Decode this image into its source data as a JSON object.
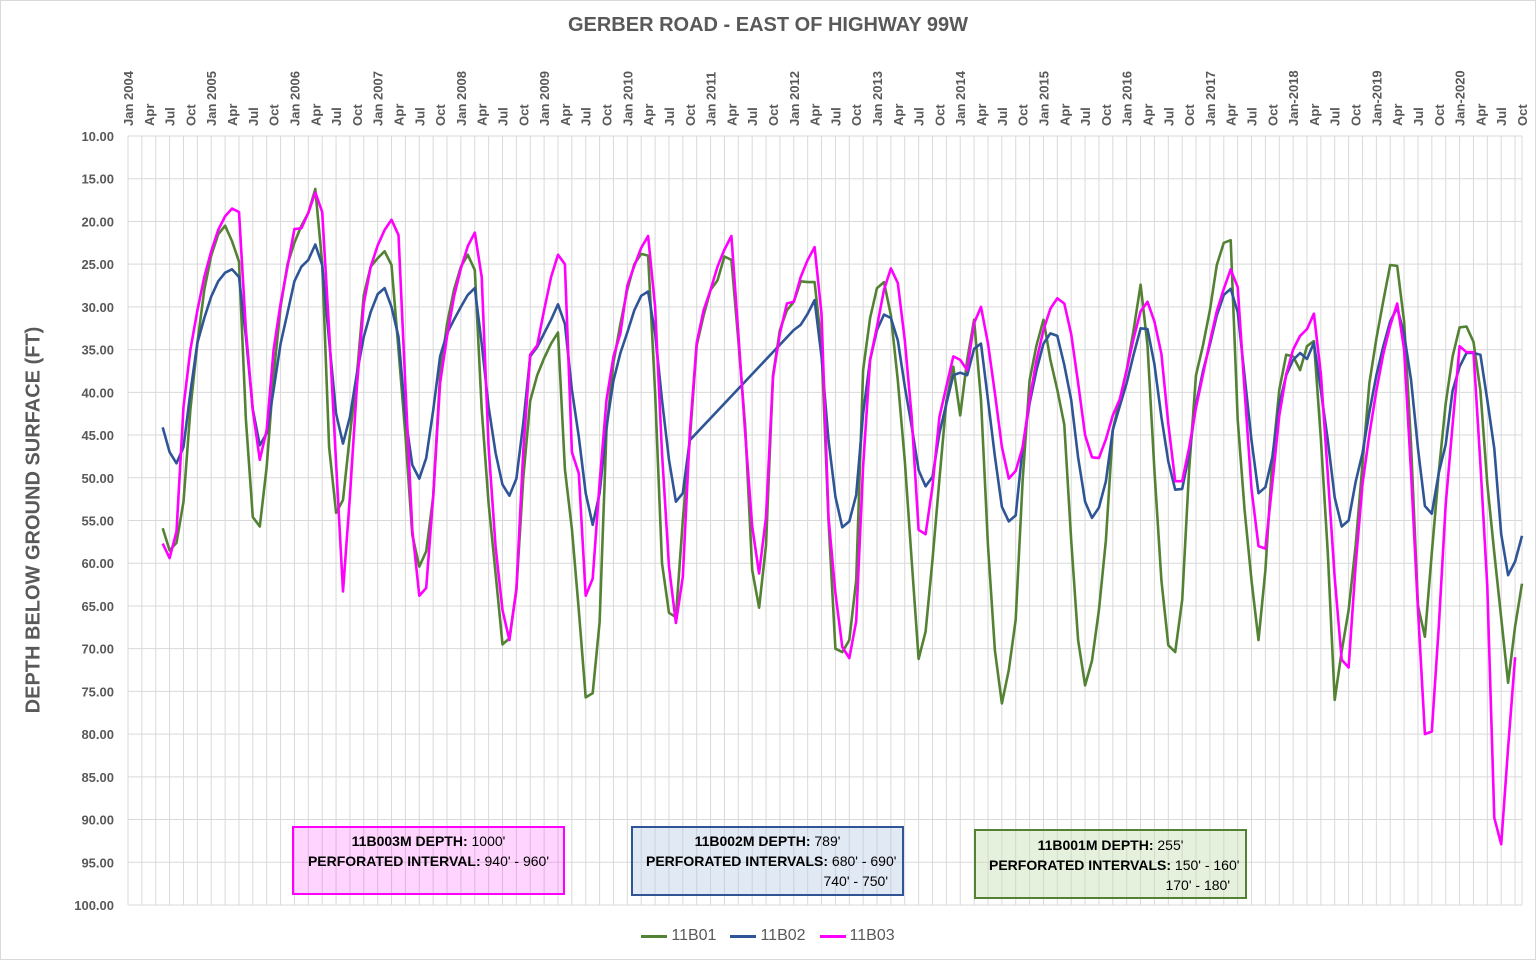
{
  "chart_data": {
    "type": "line",
    "title": "GERBER ROAD - EAST OF HIGHWAY 99W",
    "ylabel": "DEPTH BELOW GROUND SURFACE (FT)",
    "xlabel": "",
    "y_inverted": true,
    "ylim": [
      10,
      100
    ],
    "y_ticks": [
      "10.00",
      "15.00",
      "20.00",
      "25.00",
      "30.00",
      "35.00",
      "40.00",
      "45.00",
      "50.00",
      "55.00",
      "60.00",
      "65.00",
      "70.00",
      "75.00",
      "80.00",
      "85.00",
      "90.00",
      "95.00",
      "100.00"
    ],
    "xlim": [
      "2004-01",
      "2020-10"
    ],
    "x_position": "top",
    "x_ticks": [
      "Jan 2004",
      "Apr",
      "Jul",
      "Oct",
      "Jan 2005",
      "Apr",
      "Jul",
      "Oct",
      "Jan 2006",
      "Apr",
      "Jul",
      "Oct",
      "Jan 2007",
      "Apr",
      "Jul",
      "Oct",
      "Jan 2008",
      "Apr",
      "Jul",
      "Oct",
      "Jan 2009",
      "Apr",
      "Jul",
      "Oct",
      "Jan 2010",
      "Apr",
      "Jul",
      "Oct",
      "Jan 2011",
      "Apr",
      "Jul",
      "Oct",
      "Jan 2012",
      "Apr",
      "Jul",
      "Oct",
      "Jan 2013",
      "Apr",
      "Jul",
      "Oct",
      "Jan 2014",
      "Apr",
      "Jul",
      "Oct",
      "Jan 2015",
      "Apr",
      "Jul",
      "Oct",
      "Jan 2016",
      "Apr",
      "Jul",
      "Oct",
      "Jan 2017",
      "Apr",
      "Jul",
      "Oct",
      "Jan-2018",
      "Apr",
      "Jul",
      "Oct",
      "Jan-2019",
      "Apr",
      "Jul",
      "Oct",
      "Jan-2020",
      "Apr",
      "Jul",
      "Oct"
    ],
    "grid": true,
    "legend_position": "bottom",
    "series": [
      {
        "name": "11B01",
        "color": "#548235",
        "start": "2004-06",
        "values": [
          55.9,
          58.5,
          57.6,
          52.8,
          42,
          34.2,
          28,
          24,
          21.5,
          20.5,
          22.3,
          24.7,
          43.2,
          54.6,
          55.7,
          48.7,
          38,
          30,
          25,
          22.5,
          20.5,
          19,
          16.2,
          24.9,
          46.4,
          54.1,
          52.6,
          45,
          38,
          28.6,
          25.3,
          24.3,
          23.5,
          25.1,
          35,
          45,
          56.7,
          60.4,
          58.6,
          52.2,
          38,
          32,
          28,
          25.3,
          23.9,
          25.7,
          42,
          53,
          61.2,
          69.5,
          68.8,
          63.1,
          50,
          41,
          38,
          36,
          34.3,
          33,
          49,
          56,
          65.5,
          75.7,
          75.2,
          66.9,
          44.4,
          36.5,
          32,
          28,
          25,
          23.8,
          24,
          40,
          60,
          65.8,
          66.3,
          55,
          45.6,
          34.5,
          31,
          28,
          26.9,
          24.1,
          24.5,
          33.9,
          44,
          60.8,
          65.2,
          57.9,
          38,
          32.7,
          30.4,
          29.4,
          27,
          27.1,
          27.1,
          34.5,
          55,
          70,
          70.4,
          69,
          62,
          37.4,
          31.3,
          27.8,
          27.1,
          31,
          38.6,
          48,
          59.7,
          71.2,
          68,
          59.6,
          50.2,
          41,
          37,
          42.7,
          36.2,
          31.5,
          40.9,
          58,
          70.2,
          76.4,
          72.5,
          66.6,
          50.2,
          38.6,
          34.5,
          31.5,
          36.2,
          39.7,
          43.8,
          57.3,
          69,
          74.3,
          71.4,
          65.5,
          57.3,
          44.4,
          40.9,
          37.4,
          32.7,
          27.4,
          34.5,
          49.1,
          62,
          69.6,
          70.4,
          64.3,
          49.1,
          38,
          34.5,
          30.4,
          25.1,
          22.5,
          22.2,
          43.2,
          53.8,
          62,
          69,
          60.8,
          48,
          39.7,
          35.6,
          35.8,
          37.4,
          34.6,
          34,
          45.5,
          58.8,
          76,
          70.3,
          65.5,
          58,
          48.4,
          38.9,
          33.7,
          29.3,
          25.1,
          25.2,
          31.7,
          46,
          65,
          68.6,
          58.8,
          49.3,
          41.3,
          35.8,
          32.4,
          32.3,
          34.1,
          39.8,
          50.7,
          58.8,
          66.4,
          74,
          67.4,
          62.4
        ]
      },
      {
        "name": "11B02",
        "color": "#2F5597",
        "start": "2004-06",
        "values": [
          44.1,
          47,
          48.3,
          46.4,
          40,
          34.2,
          31.3,
          28.8,
          27,
          26,
          25.6,
          26.5,
          33.5,
          42,
          46.2,
          44.8,
          39.7,
          34.3,
          30.7,
          27,
          25.3,
          24.5,
          22.7,
          25.1,
          33.9,
          42.5,
          46,
          42.9,
          37.8,
          33.5,
          30.6,
          28.5,
          27.8,
          30,
          33.5,
          42.9,
          48.5,
          50.1,
          47.7,
          42.1,
          35.8,
          33.1,
          31.5,
          30,
          28.6,
          27.8,
          34.3,
          41.7,
          47.1,
          50.8,
          52.1,
          50.1,
          43.6,
          35.8,
          34.7,
          33.1,
          31.5,
          29.7,
          32,
          39.7,
          45.2,
          51.8,
          55.5,
          51.8,
          44,
          38.6,
          35.4,
          33,
          30.4,
          28.7,
          28.2,
          33.1,
          40.9,
          47.9,
          52.8,
          51.8,
          45.6,
          null,
          null,
          null,
          null,
          null,
          null,
          null,
          null,
          null,
          null,
          null,
          null,
          null,
          null,
          32.7,
          32.1,
          30.8,
          29.2,
          35.8,
          45.6,
          52.2,
          55.8,
          55.1,
          52,
          42.5,
          36.2,
          32.7,
          30.9,
          31.3,
          33.9,
          39.3,
          44,
          49.1,
          51,
          49.9,
          44.8,
          41.3,
          38,
          37.7,
          38,
          34.9,
          34.3,
          40.9,
          47.5,
          53.4,
          55.1,
          54.4,
          46.4,
          41.3,
          37.4,
          34.3,
          33.1,
          33.4,
          36.8,
          40.9,
          47.6,
          52.8,
          54.7,
          53.5,
          50.4,
          44.4,
          41.6,
          38.9,
          35.6,
          32.5,
          32.6,
          36.7,
          42.9,
          48.1,
          51.4,
          51.3,
          47.2,
          41.4,
          37.5,
          34.4,
          31,
          28.6,
          27.9,
          30.6,
          38.1,
          45.6,
          51.8,
          51.1,
          47.6,
          41.4,
          38,
          36.2,
          35.4,
          36.1,
          34.2,
          39.8,
          45.6,
          52.3,
          55.7,
          55,
          50.5,
          47.1,
          42.3,
          38,
          34.6,
          31.7,
          30.1,
          33.2,
          38.5,
          46.6,
          53.3,
          54.2,
          49.4,
          46.1,
          39.8,
          37,
          35.4,
          35.4,
          35.6,
          40.9,
          46.6,
          56.6,
          61.4,
          59.8,
          56.8
        ]
      },
      {
        "name": "11B03",
        "color": "#FF00FF",
        "start": "2004-06",
        "values": [
          57.7,
          59.4,
          56.3,
          41.7,
          35,
          30.4,
          26.5,
          23.5,
          21,
          19.4,
          18.5,
          18.9,
          32.7,
          42.1,
          47.9,
          44.4,
          35,
          29.6,
          25.3,
          20.9,
          20.8,
          19,
          16.6,
          18.9,
          32.7,
          48.3,
          63.3,
          52.2,
          39.3,
          29.6,
          25.3,
          22.8,
          21,
          19.8,
          21.6,
          39.3,
          56.1,
          63.8,
          62.9,
          52.2,
          38.9,
          33.5,
          28.8,
          25.5,
          22.9,
          21.3,
          26.5,
          46.4,
          58.1,
          65.5,
          69,
          63,
          46.8,
          35.6,
          34.5,
          30.4,
          26.5,
          23.9,
          25,
          47,
          49.5,
          63.8,
          61.8,
          50.6,
          40.9,
          35.8,
          33.1,
          27.5,
          25.2,
          23.1,
          21.7,
          30,
          47.1,
          60.4,
          67,
          61.6,
          44.8,
          34.2,
          30.4,
          28,
          25.3,
          23.3,
          21.7,
          33.1,
          44.8,
          55.7,
          61.2,
          54.6,
          38.2,
          33.1,
          29.6,
          29.4,
          26.5,
          24.5,
          23,
          30.8,
          54.6,
          63.5,
          69.8,
          71.1,
          66.8,
          48.7,
          36.2,
          32.3,
          28,
          25.5,
          27.2,
          33.9,
          42.9,
          56.1,
          56.6,
          51,
          42.9,
          39.3,
          35.8,
          36.2,
          37.4,
          31.9,
          30,
          34.3,
          40.1,
          46.4,
          50.1,
          49.2,
          46.4,
          40.9,
          36.2,
          32.7,
          30.2,
          29,
          29.6,
          33.2,
          38.9,
          45,
          47.6,
          47.7,
          45.5,
          42.7,
          40.8,
          37.4,
          33.7,
          30.5,
          29.4,
          31.7,
          35.5,
          43.7,
          50.4,
          50.4,
          46.5,
          41.8,
          37.9,
          34.1,
          30.5,
          27.9,
          25.6,
          27.7,
          39.8,
          51.3,
          58,
          58.3,
          50.7,
          42.7,
          37.9,
          35,
          33.4,
          32.6,
          30.8,
          37.9,
          49.6,
          61.7,
          71.3,
          72.2,
          60.3,
          50.7,
          44.9,
          39.8,
          35.5,
          32.2,
          29.6,
          35,
          49.3,
          65.5,
          80,
          79.7,
          67.4,
          53.1,
          43.8,
          34.6,
          35.3,
          35.3,
          48.4,
          62.7,
          89.8,
          92.9,
          81.6,
          71
        ]
      }
    ]
  },
  "annotations": {
    "well3": {
      "name_label": "11B003M DEPTH:",
      "depth": "1000'",
      "perf_label": "PERFORATED INTERVAL:",
      "perf1": "940' - 960'",
      "color": "#FF00FF"
    },
    "well2": {
      "name_label": "11B002M DEPTH:",
      "depth": "789'",
      "perf_label": "PERFORATED INTERVALS:",
      "perf1": "680' - 690'",
      "perf2": "740' - 750'",
      "color": "#2F5597"
    },
    "well1": {
      "name_label": "11B001M DEPTH:",
      "depth": "255'",
      "perf_label": "PERFORATED INTERVALS:",
      "perf1": "150' - 160'",
      "perf2": "170' - 180'",
      "color": "#548235"
    }
  },
  "legend": [
    {
      "label": "11B01",
      "color": "#548235"
    },
    {
      "label": "11B02",
      "color": "#2F5597"
    },
    {
      "label": "11B03",
      "color": "#FF00FF"
    }
  ]
}
